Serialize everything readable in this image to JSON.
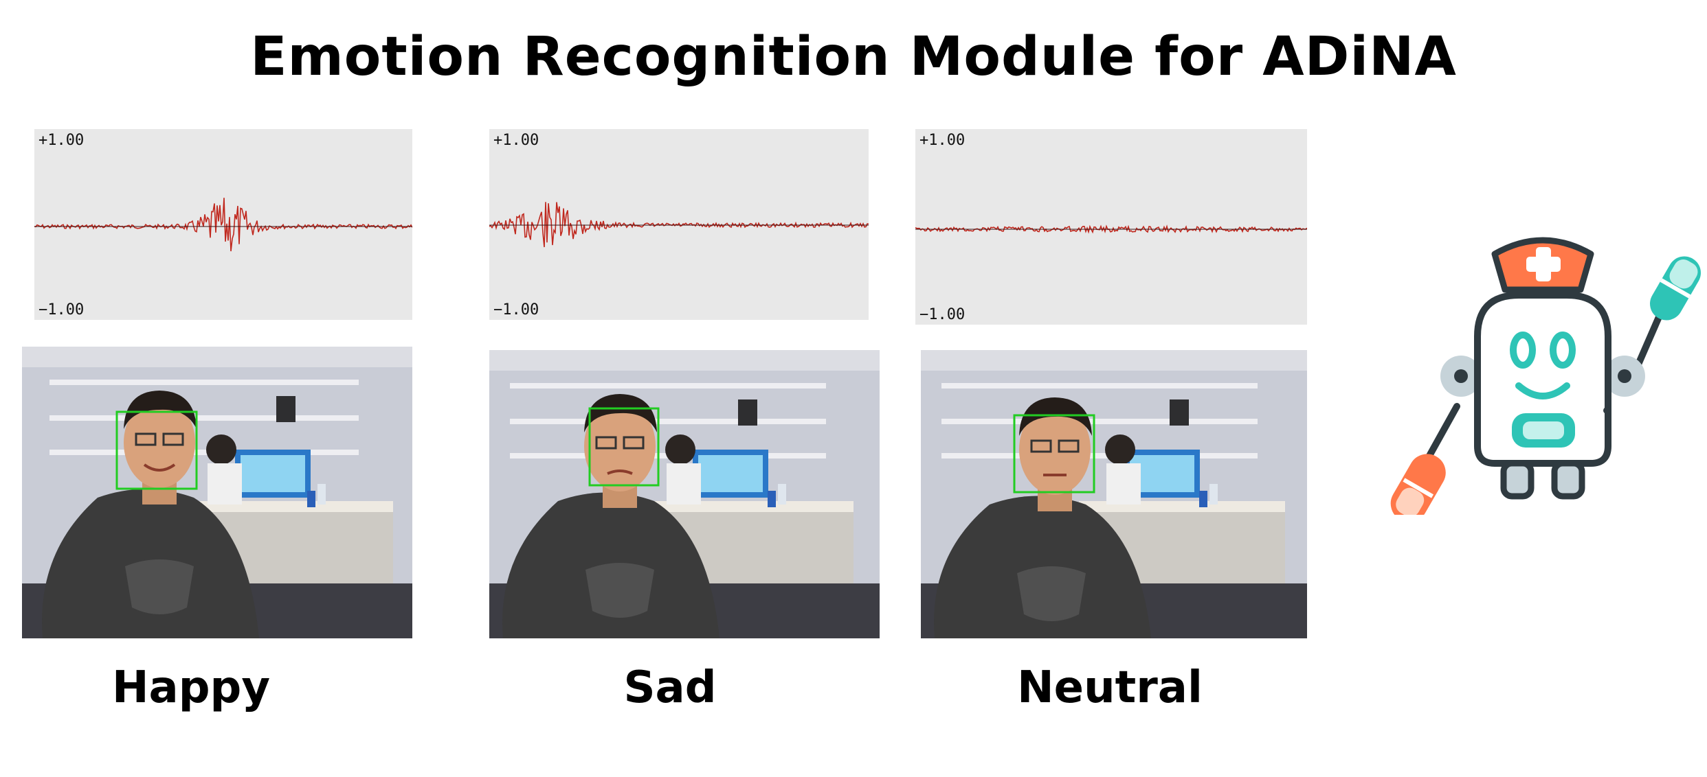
{
  "title": "Emotion Recognition Module for ADiNA",
  "panels": [
    {
      "label": "Happy",
      "scale_max": "+1.00",
      "scale_min": "−1.00"
    },
    {
      "label": "Sad",
      "scale_max": "+1.00",
      "scale_min": "−1.00"
    },
    {
      "label": "Neutral",
      "scale_max": "+1.00",
      "scale_min": "−1.00"
    }
  ],
  "colors": {
    "waveform": "#c0281e",
    "face_box": "#22cc22",
    "robot_teal": "#2ec4b6",
    "robot_orange": "#ff7849",
    "robot_outline": "#2f3a40"
  },
  "icons": [
    "nurse-robot-icon"
  ]
}
